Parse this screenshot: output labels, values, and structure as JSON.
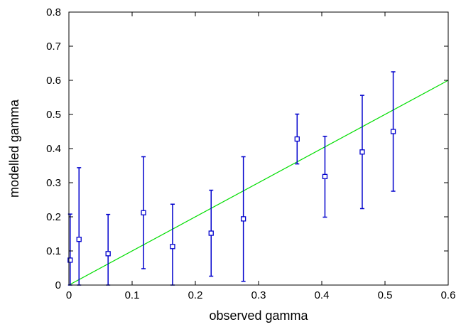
{
  "chart_data": {
    "type": "scatter",
    "title": "",
    "xlabel": "observed gamma",
    "ylabel": "modelled gamma",
    "xlim": [
      0,
      0.6
    ],
    "ylim": [
      0,
      0.8
    ],
    "x_ticks": [
      "0",
      "0.1",
      "0.2",
      "0.3",
      "0.4",
      "0.5",
      "0.6"
    ],
    "y_ticks": [
      "0",
      "0.1",
      "0.2",
      "0.3",
      "0.4",
      "0.5",
      "0.6",
      "0.7",
      "0.8"
    ],
    "grid": false,
    "legend": "none",
    "colors": {
      "points": "#0000cc",
      "fit_line": "#00dd00",
      "axes": "#000000"
    },
    "series": [
      {
        "marker": "square",
        "points": [
          {
            "x": 0.002,
            "y": 0.073,
            "ylow": 0.0,
            "yhigh": 0.208
          },
          {
            "x": 0.016,
            "y": 0.134,
            "ylow": 0.0,
            "yhigh": 0.344
          },
          {
            "x": 0.062,
            "y": 0.092,
            "ylow": 0.0,
            "yhigh": 0.207
          },
          {
            "x": 0.118,
            "y": 0.212,
            "ylow": 0.048,
            "yhigh": 0.376
          },
          {
            "x": 0.164,
            "y": 0.113,
            "ylow": 0.0,
            "yhigh": 0.237
          },
          {
            "x": 0.225,
            "y": 0.152,
            "ylow": 0.026,
            "yhigh": 0.278
          },
          {
            "x": 0.276,
            "y": 0.194,
            "ylow": 0.011,
            "yhigh": 0.376
          },
          {
            "x": 0.361,
            "y": 0.428,
            "ylow": 0.355,
            "yhigh": 0.501
          },
          {
            "x": 0.405,
            "y": 0.318,
            "ylow": 0.199,
            "yhigh": 0.436
          },
          {
            "x": 0.464,
            "y": 0.39,
            "ylow": 0.224,
            "yhigh": 0.556
          },
          {
            "x": 0.513,
            "y": 0.45,
            "ylow": 0.275,
            "yhigh": 0.625
          }
        ]
      }
    ],
    "reference_line": {
      "x": [
        0,
        0.6
      ],
      "y": [
        0,
        0.6
      ]
    }
  }
}
